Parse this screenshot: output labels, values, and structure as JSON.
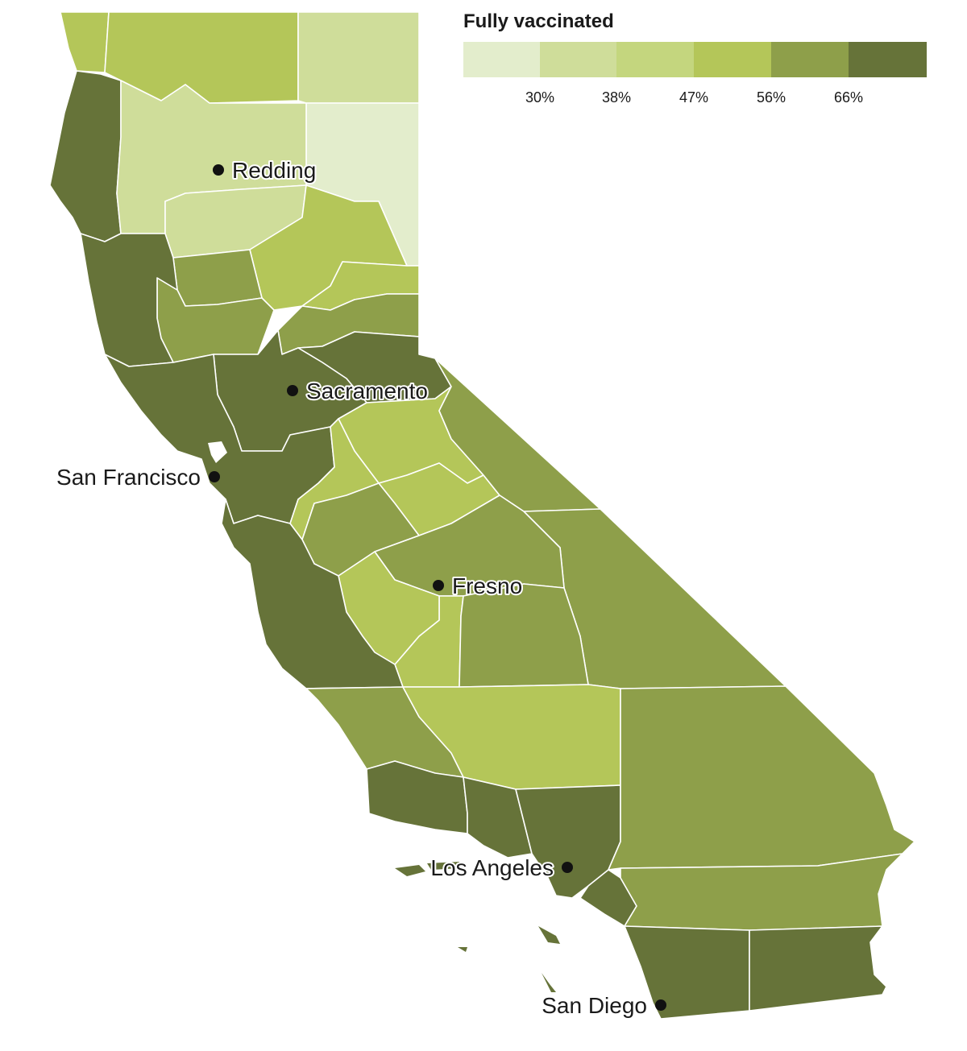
{
  "legend": {
    "title": "Fully vaccinated",
    "tick_labels": [
      "30%",
      "38%",
      "47%",
      "56%",
      "66%"
    ],
    "bin_colors": [
      "#e3edcc",
      "#cfdd9a",
      "#c4d67e",
      "#b4c659",
      "#8e9f4a",
      "#667339"
    ]
  },
  "cities": [
    {
      "name": "Redding"
    },
    {
      "name": "Sacramento"
    },
    {
      "name": "San Francisco"
    },
    {
      "name": "Fresno"
    },
    {
      "name": "Los Angeles"
    },
    {
      "name": "San Diego"
    }
  ],
  "regions": {
    "north_coast": 5,
    "north_interior_west": 3,
    "north_interior_mid": 3,
    "north_east_upper": 1,
    "north_east_lower": 0,
    "shasta_west": 1,
    "tehama": 1,
    "sierra_north": 3,
    "north_valley_a": 4,
    "north_valley_b": 3,
    "north_valley_c": 4,
    "sierra_mid": 4,
    "lake_tahoe": 5,
    "coast_central": 5,
    "sacramento_area": 5,
    "bay_area": 5,
    "foothills_a": 3,
    "foothills_b": 3,
    "foothills_c": 3,
    "eastern_sierra": 4,
    "inyo": 4,
    "central_valley_a": 4,
    "central_valley_b": 4,
    "kings": 3,
    "tulare": 4,
    "central_coast": 5,
    "slo": 4,
    "kern": 3,
    "santa_barbara": 5,
    "ventura": 5,
    "los_angeles": 5,
    "orange": 5,
    "san_bernardino": 4,
    "riverside": 4,
    "san_diego": 5,
    "imperial": 5
  }
}
